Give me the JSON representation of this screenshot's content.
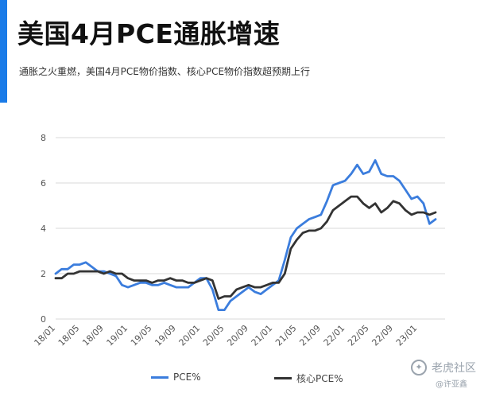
{
  "header": {
    "title": "美国4月PCE通胀增速",
    "subtitle": "通胀之火重燃，美国4月PCE物价指数、核心PCE物价指数超预期上行"
  },
  "colors": {
    "accent": "#1a7be8",
    "pce": "#3b7ddd",
    "core": "#333333"
  },
  "watermark": {
    "brand": "老虎社区",
    "author": "@许亚鑫",
    "icon": "tiger-logo-icon"
  },
  "chart_data": {
    "type": "line",
    "title": "",
    "xlabel": "",
    "ylabel": "",
    "ylim": [
      0,
      8
    ],
    "yticks": [
      "0",
      "2",
      "4",
      "6",
      "8"
    ],
    "grid": true,
    "legend": "bottom",
    "x": [
      "18/01",
      "18/02",
      "18/03",
      "18/04",
      "18/05",
      "18/06",
      "18/07",
      "18/08",
      "18/09",
      "18/10",
      "18/11",
      "18/12",
      "19/01",
      "19/02",
      "19/03",
      "19/04",
      "19/05",
      "19/06",
      "19/07",
      "19/08",
      "19/09",
      "19/10",
      "19/11",
      "19/12",
      "20/01",
      "20/02",
      "20/03",
      "20/04",
      "20/05",
      "20/06",
      "20/07",
      "20/08",
      "20/09",
      "20/10",
      "20/11",
      "20/12",
      "21/01",
      "21/02",
      "21/03",
      "21/04",
      "21/05",
      "21/06",
      "21/07",
      "21/08",
      "21/09",
      "21/10",
      "21/11",
      "21/12",
      "22/01",
      "22/02",
      "22/03",
      "22/04",
      "22/05",
      "22/06",
      "22/07",
      "22/08",
      "22/09",
      "22/10",
      "22/11",
      "22/12",
      "23/01",
      "23/02",
      "23/03",
      "23/04"
    ],
    "xtick_labels": [
      "18/01",
      "18/05",
      "18/09",
      "19/01",
      "19/05",
      "19/09",
      "20/01",
      "20/05",
      "20/09",
      "21/01",
      "21/05",
      "21/09",
      "22/01",
      "22/05",
      "22/09",
      "23/01"
    ],
    "series": [
      {
        "name": "PCE%",
        "values": [
          2.0,
          2.2,
          2.2,
          2.4,
          2.4,
          2.5,
          2.3,
          2.1,
          2.1,
          2.0,
          1.9,
          1.5,
          1.4,
          1.5,
          1.6,
          1.6,
          1.5,
          1.5,
          1.6,
          1.5,
          1.4,
          1.4,
          1.4,
          1.6,
          1.8,
          1.8,
          1.3,
          0.4,
          0.4,
          0.8,
          1.0,
          1.2,
          1.4,
          1.2,
          1.1,
          1.3,
          1.5,
          1.7,
          2.6,
          3.6,
          4.0,
          4.2,
          4.4,
          4.5,
          4.6,
          5.2,
          5.9,
          6.0,
          6.1,
          6.4,
          6.8,
          6.4,
          6.5,
          7.0,
          6.4,
          6.3,
          6.3,
          6.1,
          5.7,
          5.3,
          5.4,
          5.1,
          4.2,
          4.4
        ]
      },
      {
        "name": "核心PCE%",
        "values": [
          1.8,
          1.8,
          2.0,
          2.0,
          2.1,
          2.1,
          2.1,
          2.1,
          2.0,
          2.1,
          2.0,
          2.0,
          1.8,
          1.7,
          1.7,
          1.7,
          1.6,
          1.7,
          1.7,
          1.8,
          1.7,
          1.7,
          1.6,
          1.6,
          1.7,
          1.8,
          1.7,
          0.9,
          1.0,
          1.0,
          1.3,
          1.4,
          1.5,
          1.4,
          1.4,
          1.5,
          1.6,
          1.6,
          2.0,
          3.1,
          3.5,
          3.8,
          3.9,
          3.9,
          4.0,
          4.3,
          4.8,
          5.0,
          5.2,
          5.4,
          5.4,
          5.1,
          4.9,
          5.1,
          4.7,
          4.9,
          5.2,
          5.1,
          4.8,
          4.6,
          4.7,
          4.7,
          4.6,
          4.7
        ]
      }
    ]
  }
}
